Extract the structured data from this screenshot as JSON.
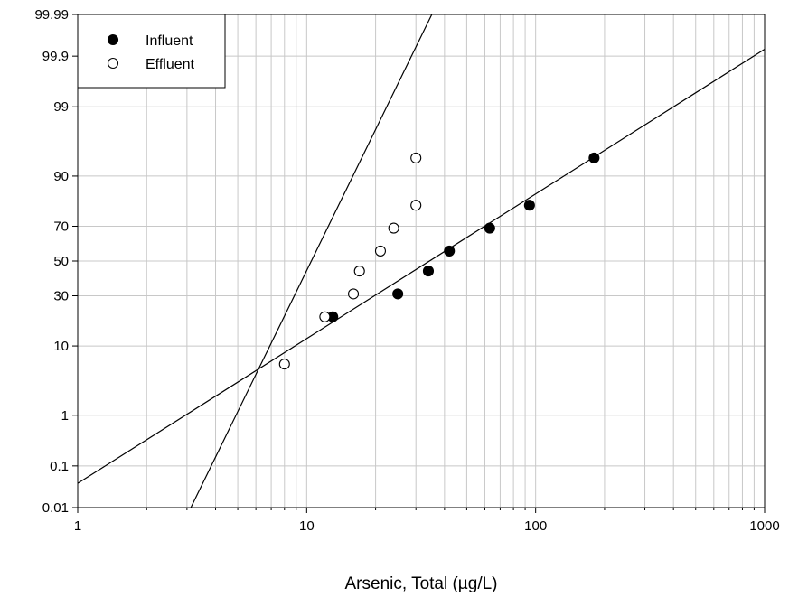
{
  "chart_data": {
    "type": "scatter",
    "title": "",
    "xlabel": "Arsenic, Total (µg/L)",
    "ylabel": "",
    "x_scale": "log",
    "y_scale": "probability",
    "xlim": [
      1,
      1000
    ],
    "ylim": [
      0.01,
      99.99
    ],
    "x_ticks": [
      {
        "value": 1,
        "label": "1"
      },
      {
        "value": 10,
        "label": "10"
      },
      {
        "value": 100,
        "label": "100"
      },
      {
        "value": 1000,
        "label": "1000"
      }
    ],
    "y_ticks": [
      {
        "value": 0.01,
        "label": "0.01"
      },
      {
        "value": 0.1,
        "label": "0.1"
      },
      {
        "value": 1,
        "label": "1"
      },
      {
        "value": 10,
        "label": "10"
      },
      {
        "value": 30,
        "label": "30"
      },
      {
        "value": 50,
        "label": "50"
      },
      {
        "value": 70,
        "label": "70"
      },
      {
        "value": 90,
        "label": "90"
      },
      {
        "value": 99,
        "label": "99"
      },
      {
        "value": 99.9,
        "label": "99.9"
      },
      {
        "value": 99.99,
        "label": "99.99"
      }
    ],
    "grid": true,
    "legend": {
      "position": "top-left"
    },
    "series": [
      {
        "name": "Influent",
        "marker": "filled-circle",
        "color": "#000000",
        "points": [
          {
            "x": 13,
            "y": 20
          },
          {
            "x": 25,
            "y": 31
          },
          {
            "x": 34,
            "y": 44
          },
          {
            "x": 42,
            "y": 56
          },
          {
            "x": 63,
            "y": 69
          },
          {
            "x": 94,
            "y": 80
          },
          {
            "x": 180,
            "y": 94
          }
        ],
        "fit_line": [
          {
            "x": 1,
            "y": 0.04
          },
          {
            "x": 1000,
            "y": 99.93
          }
        ]
      },
      {
        "name": "Effluent",
        "marker": "open-circle",
        "color": "#000000",
        "points": [
          {
            "x": 8,
            "y": 6
          },
          {
            "x": 12,
            "y": 20
          },
          {
            "x": 16,
            "y": 31
          },
          {
            "x": 17,
            "y": 44
          },
          {
            "x": 21,
            "y": 56
          },
          {
            "x": 24,
            "y": 69
          },
          {
            "x": 30,
            "y": 80
          },
          {
            "x": 30,
            "y": 94
          }
        ],
        "fit_line": [
          {
            "x": 3.12,
            "y": 0.01
          },
          {
            "x": 35.2,
            "y": 99.99
          }
        ]
      }
    ]
  }
}
